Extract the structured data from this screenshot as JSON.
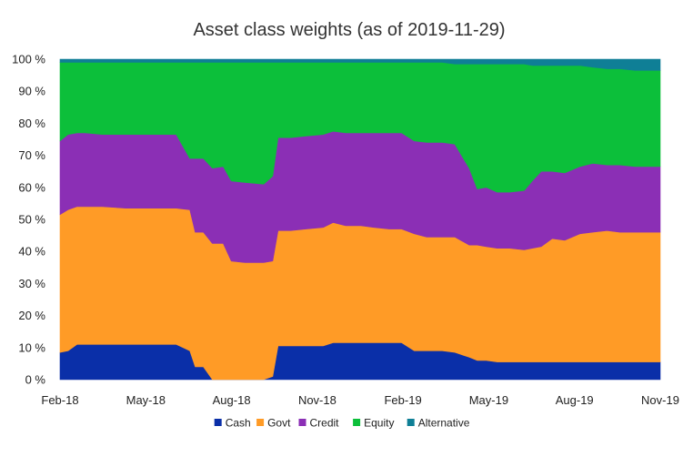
{
  "chart_data": {
    "type": "area",
    "stacked": true,
    "title": "Asset class weights (as of 2019-11-29)",
    "x_tick_labels": [
      "Feb-18",
      "May-18",
      "Aug-18",
      "Nov-18",
      "Feb-19",
      "May-19",
      "Aug-19",
      "Nov-19"
    ],
    "y_tick_labels": [
      "0 %",
      "10 %",
      "20 %",
      "30 %",
      "40 %",
      "50 %",
      "60 %",
      "70 %",
      "80 %",
      "90 %",
      "100 %"
    ],
    "ylim": [
      0,
      100
    ],
    "xlim": [
      "2018-02-01",
      "2019-11-29"
    ],
    "legend_position": "bottom",
    "grid": false,
    "x": [
      "2018-02-01",
      "2018-02-10",
      "2018-02-20",
      "2018-03-01",
      "2018-03-20",
      "2018-04-15",
      "2018-05-15",
      "2018-06-10",
      "2018-06-25",
      "2018-07-01",
      "2018-07-10",
      "2018-07-20",
      "2018-08-01",
      "2018-08-10",
      "2018-08-25",
      "2018-09-15",
      "2018-09-25",
      "2018-10-01",
      "2018-10-15",
      "2018-11-01",
      "2018-11-20",
      "2018-12-01",
      "2018-12-15",
      "2019-01-01",
      "2019-01-15",
      "2019-02-01",
      "2019-02-15",
      "2019-03-01",
      "2019-03-15",
      "2019-04-01",
      "2019-04-15",
      "2019-05-01",
      "2019-05-10",
      "2019-05-20",
      "2019-06-01",
      "2019-06-15",
      "2019-07-01",
      "2019-07-10",
      "2019-07-20",
      "2019-08-01",
      "2019-08-15",
      "2019-09-01",
      "2019-09-15",
      "2019-10-01",
      "2019-10-15",
      "2019-11-01",
      "2019-11-29"
    ],
    "series": [
      {
        "name": "Cash",
        "color": "#0a2fa8",
        "values": [
          8.5,
          9.0,
          11.0,
          11.0,
          11.0,
          11.0,
          11.0,
          11.0,
          9.0,
          4.0,
          4.0,
          0.0,
          0.0,
          0.0,
          0.0,
          0.0,
          1.0,
          10.5,
          10.5,
          10.5,
          10.5,
          11.5,
          11.5,
          11.5,
          11.5,
          11.5,
          11.5,
          9.0,
          9.0,
          9.0,
          8.5,
          7.0,
          6.0,
          6.0,
          5.5,
          5.5,
          5.5,
          5.5,
          5.5,
          5.5,
          5.5,
          5.5,
          5.5,
          5.5,
          5.5,
          5.5,
          5.5
        ]
      },
      {
        "name": "Govt",
        "color": "#ff9b26",
        "values": [
          43.0,
          44.0,
          43.0,
          43.0,
          43.0,
          42.5,
          42.5,
          42.5,
          44.0,
          42.0,
          42.0,
          42.5,
          42.5,
          37.0,
          36.5,
          36.5,
          36.0,
          36.0,
          36.0,
          36.5,
          37.0,
          37.5,
          36.5,
          36.5,
          36.0,
          35.5,
          35.5,
          36.5,
          35.5,
          35.5,
          36.0,
          35.0,
          36.0,
          35.5,
          35.5,
          35.5,
          35.0,
          35.5,
          36.0,
          38.5,
          38.0,
          40.0,
          40.5,
          41.0,
          40.5,
          40.5,
          40.5
        ]
      },
      {
        "name": "Credit",
        "color": "#8b2fb5",
        "values": [
          23.0,
          23.5,
          23.0,
          23.0,
          22.5,
          23.0,
          23.0,
          23.0,
          16.0,
          23.0,
          23.0,
          23.5,
          24.0,
          25.0,
          25.0,
          24.5,
          26.5,
          29.0,
          29.0,
          29.0,
          29.0,
          28.5,
          29.0,
          29.0,
          29.5,
          30.0,
          30.0,
          29.0,
          29.5,
          29.5,
          29.0,
          24.0,
          17.5,
          18.5,
          17.5,
          17.5,
          18.5,
          21.0,
          23.5,
          21.0,
          21.0,
          21.0,
          21.5,
          20.5,
          21.0,
          20.5,
          20.5
        ]
      },
      {
        "name": "Equity",
        "color": "#0cbf3a",
        "values": [
          24.5,
          22.5,
          22.0,
          22.0,
          22.5,
          22.5,
          22.5,
          22.5,
          30.0,
          30.0,
          30.0,
          33.0,
          32.5,
          37.0,
          37.5,
          38.0,
          35.5,
          23.5,
          23.5,
          23.0,
          22.5,
          21.5,
          22.0,
          22.0,
          22.0,
          22.0,
          22.0,
          24.5,
          25.0,
          25.0,
          25.0,
          32.5,
          39.0,
          38.5,
          40.0,
          40.0,
          39.5,
          36.0,
          33.0,
          33.0,
          33.5,
          31.5,
          30.0,
          30.0,
          30.0,
          30.0,
          30.0
        ]
      },
      {
        "name": "Alternative",
        "color": "#0f7f96",
        "values": [
          1.0,
          1.0,
          1.0,
          1.0,
          1.0,
          1.0,
          1.0,
          1.0,
          1.0,
          1.0,
          1.0,
          1.0,
          1.0,
          1.0,
          1.0,
          1.0,
          1.0,
          1.0,
          1.0,
          1.0,
          1.0,
          1.0,
          1.0,
          1.0,
          1.0,
          1.0,
          1.0,
          1.0,
          1.0,
          1.0,
          1.5,
          1.5,
          1.5,
          1.5,
          1.5,
          1.5,
          1.5,
          2.0,
          2.0,
          2.0,
          2.0,
          2.0,
          2.5,
          3.0,
          3.0,
          3.5,
          3.5
        ]
      }
    ]
  }
}
